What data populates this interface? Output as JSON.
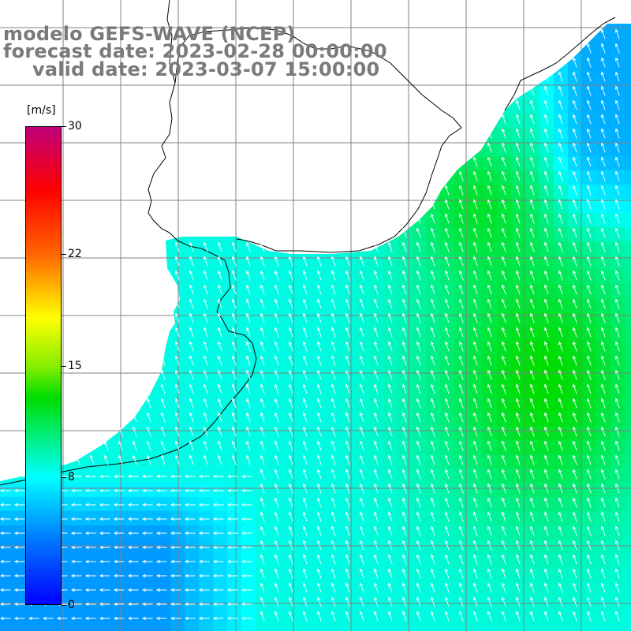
{
  "title": {
    "line1": "modelo GEFS-WAVE (NCEP)",
    "line2": "forecast date: 2023-02-28 00:00:00",
    "line3": "valid date: 2023-03-07 15:00:00"
  },
  "colorbar": {
    "unit": "[m/s]",
    "ticks": [
      "30",
      "22",
      "15",
      "8",
      "0"
    ],
    "tick_values": [
      30,
      22,
      15,
      8,
      0
    ],
    "range": [
      0,
      30
    ],
    "stops": [
      {
        "v": 0,
        "color": "#0000ff"
      },
      {
        "v": 4,
        "color": "#0077ff"
      },
      {
        "v": 8,
        "color": "#00ffff"
      },
      {
        "v": 13,
        "color": "#00dd00"
      },
      {
        "v": 15,
        "color": "#88ee00"
      },
      {
        "v": 18,
        "color": "#ffff00"
      },
      {
        "v": 22,
        "color": "#ff6600"
      },
      {
        "v": 26,
        "color": "#ff0000"
      },
      {
        "v": 30,
        "color": "#c0007a"
      }
    ]
  },
  "map": {
    "land_color": "#ffffff",
    "grid_color": "#808080",
    "coast_color": "#000000",
    "arrow_color": "#ffffff"
  }
}
